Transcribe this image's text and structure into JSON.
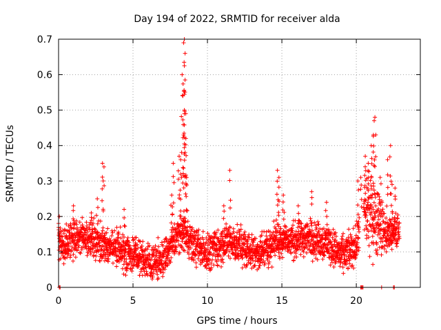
{
  "chart_data": {
    "type": "scatter",
    "title": "Day 194 of 2022, SRMTID for receiver alda",
    "xlabel": "GPS time / hours",
    "ylabel": "SRMTID / TECUs",
    "xlim": [
      0,
      24.3
    ],
    "ylim": [
      0,
      0.7
    ],
    "x_ticks": [
      0,
      5,
      10,
      15,
      20
    ],
    "x_tick_labels": [
      "0",
      "5",
      "10",
      "15",
      "20"
    ],
    "y_ticks": [
      0,
      0.1,
      0.2,
      0.3,
      0.4,
      0.5,
      0.6,
      0.7
    ],
    "y_tick_labels": [
      "0",
      "0.1",
      "0.2",
      "0.3",
      "0.4",
      "0.5",
      "0.6",
      "0.7"
    ],
    "grid": true,
    "marker": "+",
    "series_color": "#ff0000",
    "profile": [
      [
        0.0,
        0.13
      ],
      [
        0.5,
        0.12
      ],
      [
        1.0,
        0.14
      ],
      [
        1.5,
        0.15
      ],
      [
        2.0,
        0.14
      ],
      [
        2.5,
        0.13
      ],
      [
        3.0,
        0.12
      ],
      [
        3.5,
        0.11
      ],
      [
        4.0,
        0.11
      ],
      [
        4.5,
        0.1
      ],
      [
        5.0,
        0.09
      ],
      [
        5.5,
        0.085
      ],
      [
        6.0,
        0.07
      ],
      [
        6.5,
        0.07
      ],
      [
        7.0,
        0.08
      ],
      [
        7.5,
        0.11
      ],
      [
        8.0,
        0.15
      ],
      [
        8.5,
        0.16
      ],
      [
        9.0,
        0.12
      ],
      [
        9.5,
        0.11
      ],
      [
        10.0,
        0.1
      ],
      [
        10.5,
        0.11
      ],
      [
        11.0,
        0.12
      ],
      [
        11.5,
        0.13
      ],
      [
        12.0,
        0.12
      ],
      [
        12.5,
        0.11
      ],
      [
        13.0,
        0.1
      ],
      [
        13.5,
        0.1
      ],
      [
        14.0,
        0.11
      ],
      [
        14.5,
        0.13
      ],
      [
        15.0,
        0.14
      ],
      [
        15.5,
        0.13
      ],
      [
        16.0,
        0.13
      ],
      [
        16.5,
        0.14
      ],
      [
        17.0,
        0.14
      ],
      [
        17.5,
        0.13
      ],
      [
        18.0,
        0.13
      ],
      [
        18.5,
        0.11
      ],
      [
        19.0,
        0.09
      ],
      [
        19.5,
        0.1
      ],
      [
        20.0,
        0.12
      ],
      [
        20.5,
        0.22
      ],
      [
        21.0,
        0.2
      ],
      [
        21.5,
        0.19
      ],
      [
        22.0,
        0.15
      ],
      [
        22.5,
        0.15
      ],
      [
        22.9,
        0.16
      ]
    ],
    "data_gaps_hours": [
      [
        20.2,
        20.5
      ]
    ],
    "peaks": [
      {
        "x": 0.05,
        "y": 0.2
      },
      {
        "x": 1.0,
        "y": 0.23
      },
      {
        "x": 2.2,
        "y": 0.21
      },
      {
        "x": 2.6,
        "y": 0.25
      },
      {
        "x": 2.95,
        "y": 0.35
      },
      {
        "x": 3.05,
        "y": 0.34
      },
      {
        "x": 4.4,
        "y": 0.22
      },
      {
        "x": 7.6,
        "y": 0.26
      },
      {
        "x": 7.7,
        "y": 0.35
      },
      {
        "x": 8.1,
        "y": 0.37
      },
      {
        "x": 8.2,
        "y": 0.36
      },
      {
        "x": 8.3,
        "y": 0.6
      },
      {
        "x": 8.35,
        "y": 0.54
      },
      {
        "x": 8.4,
        "y": 0.69
      },
      {
        "x": 8.45,
        "y": 0.7
      },
      {
        "x": 8.5,
        "y": 0.66
      },
      {
        "x": 8.45,
        "y": 0.625
      },
      {
        "x": 8.5,
        "y": 0.585
      },
      {
        "x": 8.45,
        "y": 0.5
      },
      {
        "x": 8.4,
        "y": 0.43
      },
      {
        "x": 8.55,
        "y": 0.42
      },
      {
        "x": 8.6,
        "y": 0.31
      },
      {
        "x": 11.1,
        "y": 0.23
      },
      {
        "x": 11.5,
        "y": 0.33
      },
      {
        "x": 14.7,
        "y": 0.33
      },
      {
        "x": 14.8,
        "y": 0.31
      },
      {
        "x": 15.1,
        "y": 0.26
      },
      {
        "x": 16.1,
        "y": 0.23
      },
      {
        "x": 17.0,
        "y": 0.27
      },
      {
        "x": 18.0,
        "y": 0.24
      },
      {
        "x": 20.1,
        "y": 0.3
      },
      {
        "x": 20.3,
        "y": 0.31
      },
      {
        "x": 20.6,
        "y": 0.37
      },
      {
        "x": 20.8,
        "y": 0.35
      },
      {
        "x": 21.0,
        "y": 0.4
      },
      {
        "x": 21.15,
        "y": 0.43
      },
      {
        "x": 21.2,
        "y": 0.47
      },
      {
        "x": 21.25,
        "y": 0.48
      },
      {
        "x": 21.6,
        "y": 0.31
      },
      {
        "x": 22.1,
        "y": 0.36
      },
      {
        "x": 22.3,
        "y": 0.4
      },
      {
        "x": 22.4,
        "y": 0.29
      },
      {
        "x": 22.6,
        "y": 0.28
      }
    ],
    "zero_points_hours": [
      0.05,
      0.1,
      20.3,
      20.35,
      20.4,
      20.45,
      21.7,
      22.5,
      22.55
    ]
  }
}
